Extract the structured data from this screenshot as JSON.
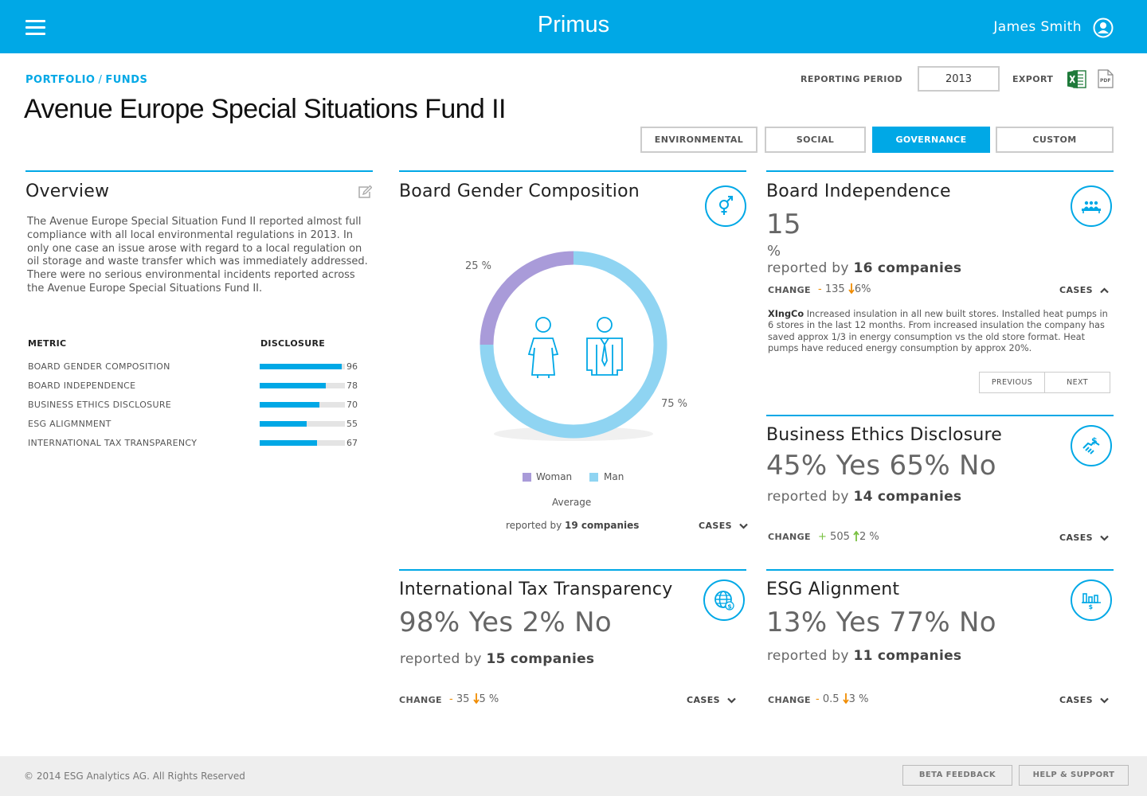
{
  "header": {
    "brand": "Primus",
    "user_name": "James Smith",
    "menu_icon": "hamburger-icon",
    "user_icon": "user-circle-icon",
    "background_color": "#00a8e6"
  },
  "breadcrumb": {
    "portfolio": "PORTFOLIO",
    "separator": "/",
    "funds": "FUNDS"
  },
  "page_title": "Avenue Europe Special Situations Fund II",
  "reporting": {
    "label": "REPORTING PERIOD",
    "value": "2013"
  },
  "export": {
    "label": "EXPORT",
    "excel_icon": "excel-icon",
    "pdf_icon": "pdf-icon",
    "pdf_text": "PDF"
  },
  "tabs": [
    {
      "label": "ENVIRONMENTAL",
      "active": false
    },
    {
      "label": "SOCIAL",
      "active": false
    },
    {
      "label": "GOVERNANCE",
      "active": true
    },
    {
      "label": "CUSTOM",
      "active": false
    }
  ],
  "overview": {
    "title": "Overview",
    "text": "The Avenue Europe Special Situation Fund II reported almost full compliance with all local environmental regulations in 2013. In only one case an issue arose with regard to a local regulation on oil storage and waste transfer which was immediately addressed. There were no serious environmental incidents reported across the Avenue Europe Special Situations Fund II.",
    "metric_header": "METRIC",
    "disclosure_header": "DISCLOSURE",
    "metrics": [
      {
        "name": "BOARD GENDER COMPOSITION",
        "value": 96
      },
      {
        "name": "BOARD INDEPENDENCE",
        "value": 78
      },
      {
        "name": "BUSINESS ETHICS DISCLOSURE",
        "value": 70
      },
      {
        "name": "ESG ALIGMNMENT",
        "value": 55
      },
      {
        "name": "INTERNATIONAL TAX TRANSPARENCY",
        "value": 67
      }
    ]
  },
  "gender": {
    "title": "Board Gender Composition",
    "woman_label": "25 %",
    "man_label": "75 %",
    "legend_woman": "Woman",
    "legend_man": "Man",
    "woman_color": "#a99bd9",
    "man_color": "#8fd4f2",
    "average": "Average",
    "reported_prefix": "reported by",
    "reported_count": "19 companies",
    "cases": "CASES"
  },
  "chart_data": {
    "type": "pie",
    "categories": [
      "Woman",
      "Man"
    ],
    "values": [
      25,
      75
    ]
  },
  "independence": {
    "title": "Board Independence",
    "value": "15",
    "unit": "%",
    "reported_prefix": "reported by",
    "reported_count": "16 companies",
    "change_label": "CHANGE",
    "change_sign": "-",
    "change_value": "135",
    "change_pct": "6%",
    "cases": "CASES",
    "case_company": "XIngCo",
    "case_text": "Increased insulation in all new built stores. Installed heat pumps in 6 stores in the last 12 months. From increased insulation the company has saved approx 1/3 in energy consumption vs the old store format. Heat pumps have reduced energy consumption by approx 20%.",
    "previous": "PREVIOUS",
    "next": "NEXT"
  },
  "ethics": {
    "title": "Business Ethics Disclosure",
    "value": "45% Yes 65% No",
    "reported_prefix": "reported by",
    "reported_count": "14 companies",
    "change_label": "CHANGE",
    "change_sign": "+",
    "change_value": "505",
    "change_pct": "2 %",
    "cases": "CASES"
  },
  "tax": {
    "title": "International Tax Transparency",
    "value": "98% Yes 2% No",
    "reported_prefix": "reported by",
    "reported_count": "15 companies",
    "change_label": "CHANGE",
    "change_sign": "-",
    "change_value": "35",
    "change_pct": "5 %",
    "cases": "CASES"
  },
  "esg": {
    "title": "ESG Alignment",
    "value": "13% Yes 77% No",
    "reported_prefix": "reported by",
    "reported_count": "11 companies",
    "change_label": "CHANGE",
    "change_sign": "-",
    "change_value": "0.5",
    "change_pct": "3 %",
    "cases": "CASES"
  },
  "footer": {
    "copyright": "© 2014 ESG Analytics AG. All Rights Reserved",
    "beta_feedback": "BETA FEEDBACK",
    "help_support": "HELP & SUPPORT"
  }
}
